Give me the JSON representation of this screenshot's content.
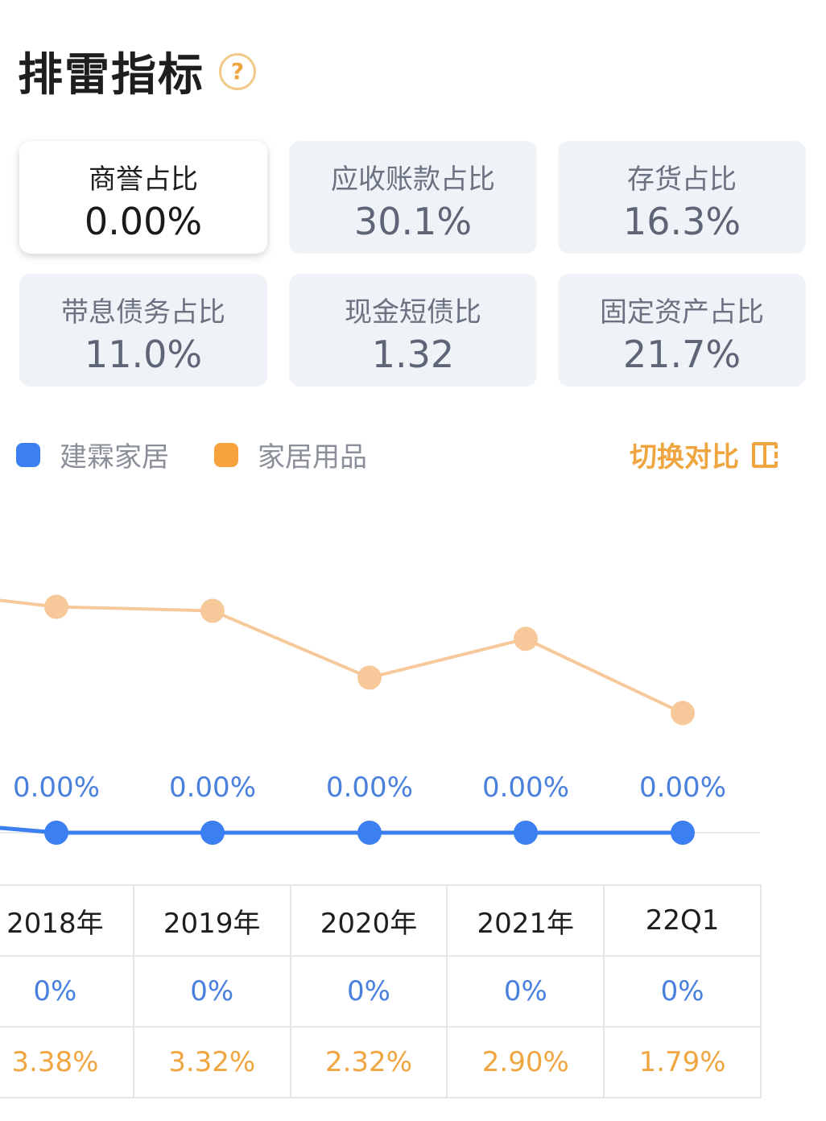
{
  "header": {
    "title": "排雷指标",
    "help_icon": "?"
  },
  "cards": [
    {
      "label": "商誉占比",
      "value": "0.00%",
      "selected": true
    },
    {
      "label": "应收账款占比",
      "value": "30.1%"
    },
    {
      "label": "存货占比",
      "value": "16.3%"
    },
    {
      "label": "带息债务占比",
      "value": "11.0%"
    },
    {
      "label": "现金短债比",
      "value": "1.32"
    },
    {
      "label": "固定资产占比",
      "value": "21.7%"
    }
  ],
  "legend": {
    "items": [
      {
        "label": "建霖家居",
        "color": "#3b7ff0"
      },
      {
        "label": "家居用品",
        "color": "#f7a23c"
      }
    ],
    "switch_label": "切换对比"
  },
  "chart_data": {
    "type": "line",
    "x": [
      "2018年",
      "2019年",
      "2020年",
      "2021年",
      "22Q1"
    ],
    "series": [
      {
        "name": "建霖家居",
        "color": "#3b7ff0",
        "values": [
          0,
          0,
          0,
          0,
          0
        ],
        "labels": [
          "0.00%",
          "0.00%",
          "0.00%",
          "0.00%",
          "0.00%"
        ]
      },
      {
        "name": "家居用品",
        "color": "#f7c99a",
        "values": [
          3.38,
          3.32,
          2.32,
          2.9,
          1.79
        ]
      }
    ]
  },
  "table": {
    "headers": [
      "2018年",
      "2019年",
      "2020年",
      "2021年",
      "22Q1"
    ],
    "row_company": [
      "0%",
      "0%",
      "0%",
      "0%",
      "0%"
    ],
    "row_industry": [
      "3.38%",
      "3.32%",
      "2.32%",
      "2.90%",
      "1.79%"
    ]
  }
}
